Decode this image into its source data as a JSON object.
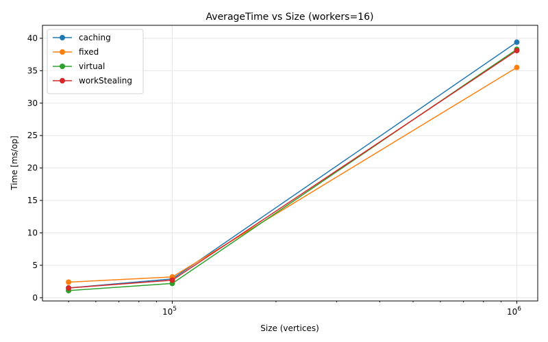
{
  "chart_data": {
    "type": "line",
    "title": "AverageTime vs Size (workers=16)",
    "xlabel": "Size (vertices)",
    "ylabel": "Time [ms/op]",
    "x_scale": "log",
    "x": [
      50000,
      100000,
      1000000
    ],
    "xlim": [
      42000,
      1150000
    ],
    "ylim": [
      -0.5,
      42
    ],
    "x_ticks": [
      {
        "value": 100000,
        "base": "10",
        "exp": "5"
      },
      {
        "value": 1000000,
        "base": "10",
        "exp": "6"
      }
    ],
    "y_ticks": [
      0,
      5,
      10,
      15,
      20,
      25,
      30,
      35,
      40
    ],
    "grid": true,
    "legend_position": "top-left",
    "series": [
      {
        "name": "caching",
        "color": "#1f77b4",
        "values": [
          1.5,
          2.9,
          39.4
        ]
      },
      {
        "name": "fixed",
        "color": "#ff7f0e",
        "values": [
          2.4,
          3.2,
          35.5
        ]
      },
      {
        "name": "virtual",
        "color": "#2ca02c",
        "values": [
          1.1,
          2.2,
          38.3
        ]
      },
      {
        "name": "workStealing",
        "color": "#d62728",
        "values": [
          1.5,
          2.7,
          38.1
        ]
      }
    ]
  }
}
